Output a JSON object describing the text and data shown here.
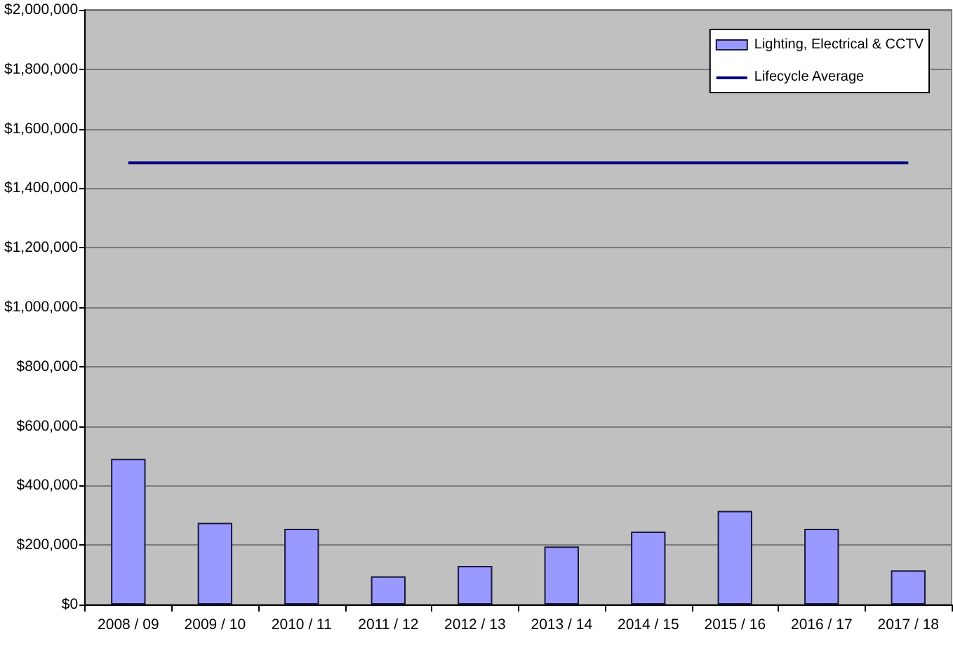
{
  "chart_data": {
    "type": "bar",
    "categories": [
      "2008 / 09",
      "2009 / 10",
      "2010 / 11",
      "2011 / 12",
      "2012 / 13",
      "2013 / 14",
      "2014 / 15",
      "2015 / 16",
      "2016 / 17",
      "2017 / 18"
    ],
    "series": [
      {
        "name": "Lighting, Electrical & CCTV",
        "color": "#9999ff",
        "values": [
          490000,
          275000,
          255000,
          95000,
          130000,
          195000,
          245000,
          315000,
          255000,
          115000
        ]
      },
      {
        "name": "Lifecycle Average",
        "type": "line",
        "color": "#000080",
        "values": [
          1485000,
          1485000,
          1485000,
          1485000,
          1485000,
          1485000,
          1485000,
          1485000,
          1485000,
          1485000
        ]
      }
    ],
    "ylim": [
      0,
      2000000
    ],
    "yticks": [
      {
        "value": 0,
        "label": "$0"
      },
      {
        "value": 200000,
        "label": "$200,000"
      },
      {
        "value": 400000,
        "label": "$400,000"
      },
      {
        "value": 600000,
        "label": "$600,000"
      },
      {
        "value": 800000,
        "label": "$800,000"
      },
      {
        "value": 1000000,
        "label": "$1,000,000"
      },
      {
        "value": 1200000,
        "label": "$1,200,000"
      },
      {
        "value": 1400000,
        "label": "$1,400,000"
      },
      {
        "value": 1600000,
        "label": "$1,600,000"
      },
      {
        "value": 1800000,
        "label": "$1,800,000"
      },
      {
        "value": 2000000,
        "label": "$2,000,000"
      }
    ],
    "grid": "y",
    "legend": "top right"
  }
}
